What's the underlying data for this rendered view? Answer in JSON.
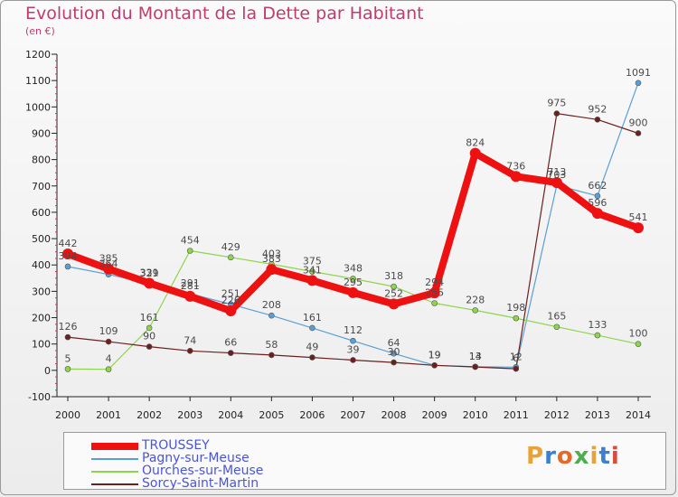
{
  "header": {
    "title": "Evolution du Montant de la Dette par Habitant",
    "unit": "(en €)"
  },
  "logo": {
    "text": "Proxiti",
    "colors": [
      "#e8a23a",
      "#3b7fd1",
      "#e36a2b",
      "#4caf50",
      "#e8a23a",
      "#3b7fd1",
      "#d94b3b"
    ]
  },
  "chart_data": {
    "type": "line",
    "x": [
      "2000",
      "2001",
      "2002",
      "2003",
      "2004",
      "2005",
      "2006",
      "2007",
      "2008",
      "2009",
      "2010",
      "2011",
      "2012",
      "2013",
      "2014"
    ],
    "ylim": [
      -100,
      1200
    ],
    "yticks": [
      -100,
      0,
      100,
      200,
      300,
      400,
      500,
      600,
      700,
      800,
      900,
      1000,
      1100,
      1200
    ],
    "grid": false,
    "legend": "bottom",
    "series": [
      {
        "name": "Pagny-sur-Meuse",
        "color": "#5a9fd4",
        "width": 1.2,
        "values": [
          394,
          364,
          329,
          291,
          251,
          208,
          161,
          112,
          64,
          19,
          14,
          12,
          703,
          662,
          1091
        ]
      },
      {
        "name": "Ourches-sur-Meuse",
        "color": "#8fd44d",
        "width": 1.2,
        "values": [
          5,
          4,
          161,
          454,
          429,
          403,
          375,
          348,
          318,
          255,
          228,
          198,
          165,
          133,
          100
        ]
      },
      {
        "name": "Sorcy-Saint-Martin",
        "color": "#6b1f1f",
        "width": 1.2,
        "values": [
          126,
          109,
          90,
          74,
          66,
          58,
          49,
          39,
          30,
          19,
          13,
          6,
          975,
          952,
          900
        ]
      },
      {
        "name": "TROUSSEY",
        "color": "#ee1111",
        "width": 8,
        "values": [
          442,
          385,
          331,
          281,
          226,
          383,
          341,
          295,
          252,
          294,
          824,
          736,
          713,
          596,
          541
        ]
      }
    ],
    "legend_order": [
      "TROUSSEY",
      "Pagny-sur-Meuse",
      "Ourches-sur-Meuse",
      "Sorcy-Saint-Martin"
    ]
  }
}
